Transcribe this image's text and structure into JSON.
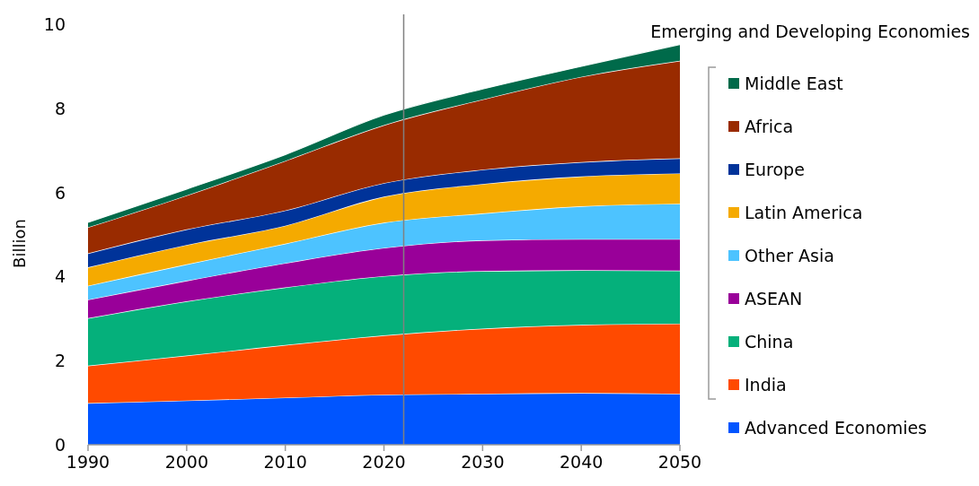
{
  "chart_data": {
    "type": "area",
    "stacked": true,
    "ylabel": "Billion",
    "legend_title": "Emerging and Developing Economies",
    "x": [
      1990,
      2000,
      2010,
      2020,
      2030,
      2040,
      2050
    ],
    "xlim": [
      1990,
      2050
    ],
    "xticks": [
      1990,
      2000,
      2010,
      2020,
      2030,
      2040,
      2050
    ],
    "ylim": [
      0,
      10
    ],
    "yticks": [
      0,
      2,
      4,
      6,
      8,
      10
    ],
    "grid": false,
    "legend": "right",
    "ref_lines": [
      {
        "axis": "x",
        "value": 2022,
        "color": "#808080"
      }
    ],
    "series": [
      {
        "name": "Advanced Economies",
        "color": "#0055ff",
        "values": [
          0.99,
          1.05,
          1.12,
          1.19,
          1.21,
          1.23,
          1.21
        ]
      },
      {
        "name": "India",
        "color": "#ff4a00",
        "values": [
          0.89,
          1.07,
          1.25,
          1.41,
          1.55,
          1.62,
          1.67
        ]
      },
      {
        "name": "China",
        "color": "#05b07b",
        "values": [
          1.13,
          1.29,
          1.37,
          1.41,
          1.37,
          1.3,
          1.26
        ]
      },
      {
        "name": "ASEAN",
        "color": "#990099",
        "values": [
          0.44,
          0.49,
          0.58,
          0.67,
          0.73,
          0.74,
          0.75
        ]
      },
      {
        "name": "Other Asia",
        "color": "#4dc3ff",
        "values": [
          0.33,
          0.39,
          0.46,
          0.6,
          0.64,
          0.78,
          0.84
        ]
      },
      {
        "name": "Latin America",
        "color": "#f5aa00",
        "values": [
          0.44,
          0.46,
          0.43,
          0.62,
          0.7,
          0.71,
          0.72
        ]
      },
      {
        "name": "Europe",
        "color": "#003399",
        "values": [
          0.33,
          0.37,
          0.36,
          0.32,
          0.34,
          0.34,
          0.36
        ]
      },
      {
        "name": "Africa",
        "color": "#992b00",
        "values": [
          0.62,
          0.81,
          1.18,
          1.38,
          1.67,
          2.03,
          2.32
        ]
      },
      {
        "name": "Middle East",
        "color": "#006a4a",
        "values": [
          0.12,
          0.15,
          0.15,
          0.24,
          0.25,
          0.25,
          0.39
        ]
      }
    ]
  }
}
